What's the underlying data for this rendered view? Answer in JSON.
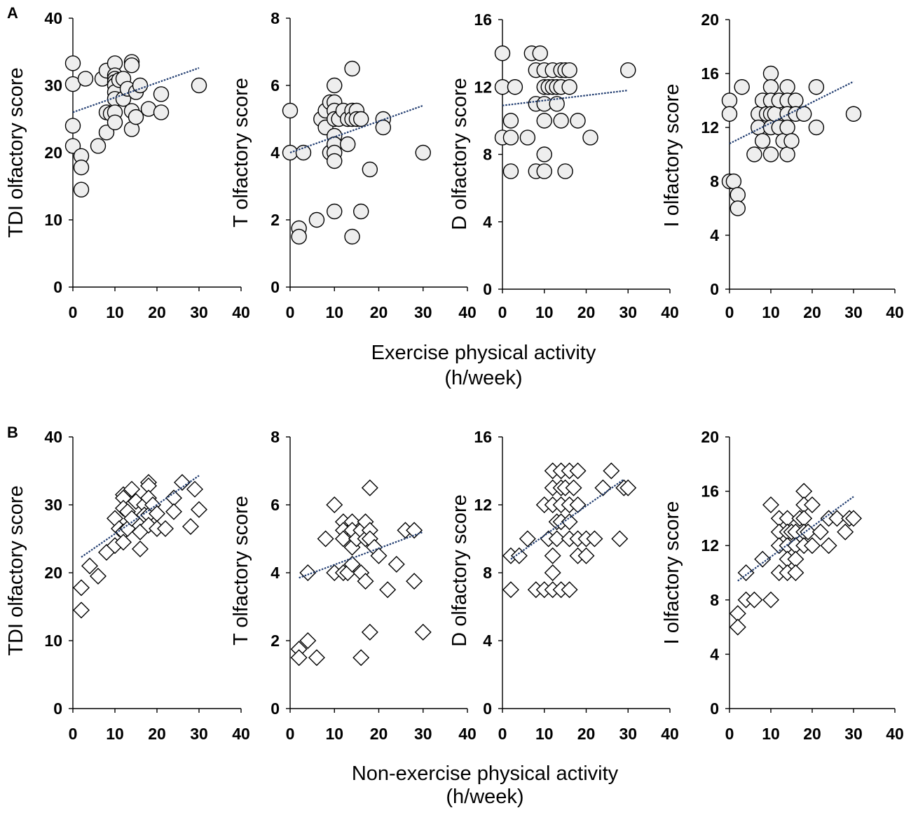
{
  "figure": {
    "panels": [
      {
        "label": "A",
        "xlabel_line1": "Exercise physical activity",
        "xlabel_line2": "(h/week)"
      },
      {
        "label": "B",
        "xlabel_line1": "Non-exercise physical activity",
        "xlabel_line2": "(h/week)"
      }
    ]
  },
  "colors": {
    "axis": "#000000",
    "marker_stroke": "#000000",
    "circle_fill": "#eeeeee",
    "diamond_fill": "#ffffff",
    "trendline": "#1f3b6f"
  },
  "chart_data": [
    {
      "type": "scatter",
      "ylabel": "TDI olfactory score",
      "marker": "circle",
      "xlim": [
        0,
        40
      ],
      "ylim": [
        0,
        40
      ],
      "xticks": [
        0,
        10,
        20,
        30,
        40
      ],
      "yticks": [
        0,
        10,
        20,
        30,
        40
      ],
      "grid": false,
      "points": [
        [
          0,
          33.3
        ],
        [
          0,
          30.2
        ],
        [
          0,
          24
        ],
        [
          0,
          21
        ],
        [
          2,
          19.5
        ],
        [
          2,
          17.8
        ],
        [
          2,
          14.5
        ],
        [
          3,
          31
        ],
        [
          6,
          21
        ],
        [
          7,
          31
        ],
        [
          8,
          32.2
        ],
        [
          8,
          26
        ],
        [
          8,
          23
        ],
        [
          9,
          25.8
        ],
        [
          10,
          33.3
        ],
        [
          10,
          31.5
        ],
        [
          10,
          31
        ],
        [
          10,
          30.5
        ],
        [
          10,
          30
        ],
        [
          10,
          29
        ],
        [
          10,
          28
        ],
        [
          10,
          26
        ],
        [
          10,
          24.5
        ],
        [
          11,
          30.8
        ],
        [
          12,
          31
        ],
        [
          12,
          28
        ],
        [
          13,
          29.5
        ],
        [
          14,
          33.5
        ],
        [
          14,
          33
        ],
        [
          14,
          26.2
        ],
        [
          14,
          23.5
        ],
        [
          15,
          29
        ],
        [
          15,
          25.3
        ],
        [
          16,
          30
        ],
        [
          18,
          26.5
        ],
        [
          21,
          28.7
        ],
        [
          21,
          26
        ],
        [
          30,
          30
        ]
      ],
      "trendline": {
        "x": [
          0,
          30
        ],
        "y": [
          26,
          32.6
        ]
      }
    },
    {
      "type": "scatter",
      "ylabel": "T olfactory score",
      "marker": "circle",
      "xlim": [
        0,
        40
      ],
      "ylim": [
        0,
        8
      ],
      "xticks": [
        0,
        10,
        20,
        30,
        40
      ],
      "yticks": [
        0,
        2,
        4,
        6,
        8
      ],
      "grid": false,
      "points": [
        [
          0,
          5.25
        ],
        [
          0,
          4
        ],
        [
          2,
          1.75
        ],
        [
          2,
          1.5
        ],
        [
          3,
          4
        ],
        [
          6,
          2
        ],
        [
          7,
          5
        ],
        [
          8,
          5.25
        ],
        [
          8,
          4.75
        ],
        [
          9,
          5.5
        ],
        [
          9,
          4
        ],
        [
          10,
          6
        ],
        [
          10,
          5.5
        ],
        [
          10,
          5.25
        ],
        [
          10,
          5
        ],
        [
          10,
          4.5
        ],
        [
          10,
          4.25
        ],
        [
          10,
          4
        ],
        [
          10,
          3.75
        ],
        [
          10,
          2.25
        ],
        [
          11,
          5
        ],
        [
          12,
          5.25
        ],
        [
          13,
          5
        ],
        [
          13,
          4.25
        ],
        [
          14,
          6.5
        ],
        [
          14,
          5.25
        ],
        [
          14,
          5
        ],
        [
          14,
          1.5
        ],
        [
          15,
          5.25
        ],
        [
          15,
          5
        ],
        [
          16,
          5
        ],
        [
          16,
          2.25
        ],
        [
          18,
          3.5
        ],
        [
          21,
          5
        ],
        [
          21,
          4.75
        ],
        [
          30,
          4
        ]
      ],
      "trendline": {
        "x": [
          0,
          30
        ],
        "y": [
          4.0,
          5.4
        ]
      }
    },
    {
      "type": "scatter",
      "ylabel": "D olfactory score",
      "marker": "circle",
      "xlim": [
        0,
        40
      ],
      "ylim": [
        0,
        16
      ],
      "xticks": [
        0,
        10,
        20,
        30,
        40
      ],
      "yticks": [
        0,
        4,
        8,
        12,
        16
      ],
      "grid": false,
      "points": [
        [
          0,
          14
        ],
        [
          0,
          12
        ],
        [
          0,
          9
        ],
        [
          2,
          9
        ],
        [
          2,
          10
        ],
        [
          2,
          7
        ],
        [
          3,
          12
        ],
        [
          6,
          9
        ],
        [
          7,
          14
        ],
        [
          8,
          13
        ],
        [
          8,
          11
        ],
        [
          8,
          7
        ],
        [
          9,
          14
        ],
        [
          10,
          13
        ],
        [
          10,
          12
        ],
        [
          10,
          11
        ],
        [
          10,
          10
        ],
        [
          10,
          8
        ],
        [
          10,
          7
        ],
        [
          11,
          12
        ],
        [
          12,
          13
        ],
        [
          12,
          12
        ],
        [
          13,
          11
        ],
        [
          13,
          12
        ],
        [
          14,
          13
        ],
        [
          14,
          12
        ],
        [
          14,
          10
        ],
        [
          15,
          13
        ],
        [
          15,
          7
        ],
        [
          16,
          13
        ],
        [
          16,
          12
        ],
        [
          18,
          10
        ],
        [
          21,
          9
        ],
        [
          30,
          13
        ]
      ],
      "trendline": {
        "x": [
          0,
          30
        ],
        "y": [
          10.9,
          11.8
        ]
      }
    },
    {
      "type": "scatter",
      "ylabel": "I olfactory score",
      "marker": "circle",
      "xlim": [
        0,
        40
      ],
      "ylim": [
        0,
        20
      ],
      "xticks": [
        0,
        10,
        20,
        30,
        40
      ],
      "yticks": [
        0,
        4,
        8,
        12,
        16,
        20
      ],
      "grid": false,
      "points": [
        [
          0,
          14
        ],
        [
          0,
          13
        ],
        [
          0,
          8
        ],
        [
          1,
          8
        ],
        [
          2,
          7
        ],
        [
          2,
          6
        ],
        [
          3,
          15
        ],
        [
          6,
          10
        ],
        [
          7,
          13
        ],
        [
          7,
          12
        ],
        [
          8,
          14
        ],
        [
          8,
          11
        ],
        [
          9,
          13
        ],
        [
          10,
          16
        ],
        [
          10,
          15
        ],
        [
          10,
          14
        ],
        [
          10,
          13
        ],
        [
          10,
          12
        ],
        [
          10,
          10
        ],
        [
          11,
          13
        ],
        [
          12,
          14
        ],
        [
          12,
          12
        ],
        [
          13,
          11
        ],
        [
          14,
          15
        ],
        [
          14,
          14
        ],
        [
          14,
          13
        ],
        [
          14,
          12
        ],
        [
          14,
          10
        ],
        [
          15,
          11
        ],
        [
          16,
          14
        ],
        [
          16,
          13
        ],
        [
          18,
          13
        ],
        [
          21,
          15
        ],
        [
          21,
          12
        ],
        [
          30,
          13
        ]
      ],
      "trendline": {
        "x": [
          0,
          30
        ],
        "y": [
          10.8,
          15.4
        ]
      }
    },
    {
      "type": "scatter",
      "ylabel": "TDI olfactory score",
      "marker": "diamond",
      "xlim": [
        0,
        40
      ],
      "ylim": [
        0,
        40
      ],
      "xticks": [
        0,
        10,
        20,
        30,
        40
      ],
      "yticks": [
        0,
        10,
        20,
        30,
        40
      ],
      "grid": false,
      "points": [
        [
          2,
          17.8
        ],
        [
          2,
          14.5
        ],
        [
          4,
          21
        ],
        [
          6,
          19.5
        ],
        [
          8,
          23
        ],
        [
          10,
          28
        ],
        [
          10,
          24
        ],
        [
          11,
          26.5
        ],
        [
          12,
          31.5
        ],
        [
          12,
          31
        ],
        [
          12,
          29.5
        ],
        [
          12,
          26
        ],
        [
          12,
          24.5
        ],
        [
          13,
          29
        ],
        [
          13,
          26.5
        ],
        [
          14,
          32.3
        ],
        [
          14,
          28
        ],
        [
          15,
          30.5
        ],
        [
          16,
          26
        ],
        [
          16,
          23.5
        ],
        [
          17,
          30
        ],
        [
          17,
          28.5
        ],
        [
          18,
          33.3
        ],
        [
          18,
          32.8
        ],
        [
          18,
          31
        ],
        [
          18,
          28.5
        ],
        [
          18,
          27
        ],
        [
          19,
          30
        ],
        [
          20,
          28.7
        ],
        [
          20,
          26.5
        ],
        [
          22,
          26.5
        ],
        [
          24,
          31
        ],
        [
          24,
          29
        ],
        [
          26,
          33.3
        ],
        [
          28,
          26.8
        ],
        [
          29,
          32.3
        ],
        [
          30,
          29.3
        ]
      ],
      "trendline": {
        "x": [
          2,
          30
        ],
        "y": [
          22.3,
          34.3
        ]
      }
    },
    {
      "type": "scatter",
      "ylabel": "T olfactory score",
      "marker": "diamond",
      "xlim": [
        0,
        40
      ],
      "ylim": [
        0,
        8
      ],
      "xticks": [
        0,
        10,
        20,
        30,
        40
      ],
      "yticks": [
        0,
        2,
        4,
        6,
        8
      ],
      "grid": false,
      "points": [
        [
          2,
          1.75
        ],
        [
          2,
          1.5
        ],
        [
          4,
          4
        ],
        [
          4,
          2
        ],
        [
          6,
          1.5
        ],
        [
          8,
          5
        ],
        [
          10,
          6
        ],
        [
          10,
          4
        ],
        [
          12,
          5.5
        ],
        [
          12,
          5.25
        ],
        [
          12,
          5
        ],
        [
          12,
          4
        ],
        [
          13,
          4
        ],
        [
          14,
          5.5
        ],
        [
          14,
          5.25
        ],
        [
          14,
          4.75
        ],
        [
          14,
          4.25
        ],
        [
          15,
          5
        ],
        [
          16,
          5.25
        ],
        [
          16,
          4
        ],
        [
          16,
          1.5
        ],
        [
          17,
          5.5
        ],
        [
          17,
          5
        ],
        [
          17,
          3.75
        ],
        [
          18,
          6.5
        ],
        [
          18,
          5.25
        ],
        [
          18,
          5
        ],
        [
          18,
          2.25
        ],
        [
          19,
          4.75
        ],
        [
          20,
          4.5
        ],
        [
          22,
          3.5
        ],
        [
          24,
          4.25
        ],
        [
          26,
          5.25
        ],
        [
          28,
          5.25
        ],
        [
          28,
          3.75
        ],
        [
          30,
          2.25
        ]
      ],
      "trendline": {
        "x": [
          2,
          30
        ],
        "y": [
          3.85,
          5.2
        ]
      }
    },
    {
      "type": "scatter",
      "ylabel": "D olfactory score",
      "marker": "diamond",
      "xlim": [
        0,
        40
      ],
      "ylim": [
        0,
        16
      ],
      "xticks": [
        0,
        10,
        20,
        30,
        40
      ],
      "yticks": [
        0,
        4,
        8,
        12,
        16
      ],
      "grid": false,
      "points": [
        [
          2,
          9
        ],
        [
          2,
          7
        ],
        [
          4,
          9
        ],
        [
          6,
          10
        ],
        [
          8,
          7
        ],
        [
          10,
          12
        ],
        [
          10,
          7
        ],
        [
          11,
          10
        ],
        [
          12,
          14
        ],
        [
          12,
          13
        ],
        [
          12,
          12
        ],
        [
          12,
          9
        ],
        [
          12,
          8
        ],
        [
          12,
          7
        ],
        [
          13,
          11
        ],
        [
          13,
          10
        ],
        [
          14,
          14
        ],
        [
          14,
          13
        ],
        [
          14,
          12
        ],
        [
          14,
          11
        ],
        [
          14,
          7
        ],
        [
          15,
          13
        ],
        [
          16,
          14
        ],
        [
          16,
          12
        ],
        [
          16,
          11
        ],
        [
          16,
          10
        ],
        [
          16,
          7
        ],
        [
          17,
          13
        ],
        [
          18,
          14
        ],
        [
          18,
          12
        ],
        [
          18,
          10
        ],
        [
          18,
          9
        ],
        [
          20,
          10
        ],
        [
          20,
          9
        ],
        [
          22,
          10
        ],
        [
          24,
          13
        ],
        [
          26,
          14
        ],
        [
          28,
          10
        ],
        [
          29,
          13
        ],
        [
          30,
          13
        ]
      ],
      "trendline": {
        "x": [
          2,
          29
        ],
        "y": [
          8.8,
          13.5
        ]
      }
    },
    {
      "type": "scatter",
      "ylabel": "I olfactory score",
      "marker": "diamond",
      "xlim": [
        0,
        40
      ],
      "ylim": [
        0,
        20
      ],
      "xticks": [
        0,
        10,
        20,
        30,
        40
      ],
      "yticks": [
        0,
        4,
        8,
        12,
        16,
        20
      ],
      "grid": false,
      "points": [
        [
          2,
          7
        ],
        [
          2,
          6
        ],
        [
          4,
          10
        ],
        [
          4,
          8
        ],
        [
          6,
          8
        ],
        [
          8,
          11
        ],
        [
          10,
          15
        ],
        [
          10,
          8
        ],
        [
          12,
          14
        ],
        [
          12,
          13
        ],
        [
          12,
          12
        ],
        [
          12,
          10
        ],
        [
          14,
          14
        ],
        [
          14,
          13
        ],
        [
          14,
          12
        ],
        [
          14,
          11
        ],
        [
          14,
          10
        ],
        [
          15,
          13
        ],
        [
          16,
          13
        ],
        [
          16,
          12
        ],
        [
          16,
          11
        ],
        [
          16,
          10
        ],
        [
          17,
          14
        ],
        [
          18,
          16
        ],
        [
          18,
          15
        ],
        [
          18,
          14
        ],
        [
          18,
          13
        ],
        [
          18,
          12
        ],
        [
          19,
          13
        ],
        [
          20,
          15
        ],
        [
          20,
          12
        ],
        [
          22,
          13
        ],
        [
          24,
          14
        ],
        [
          24,
          12
        ],
        [
          26,
          14
        ],
        [
          28,
          13
        ],
        [
          29,
          14
        ],
        [
          30,
          14
        ]
      ],
      "trendline": {
        "x": [
          2,
          30
        ],
        "y": [
          9.4,
          15.6
        ]
      }
    }
  ]
}
